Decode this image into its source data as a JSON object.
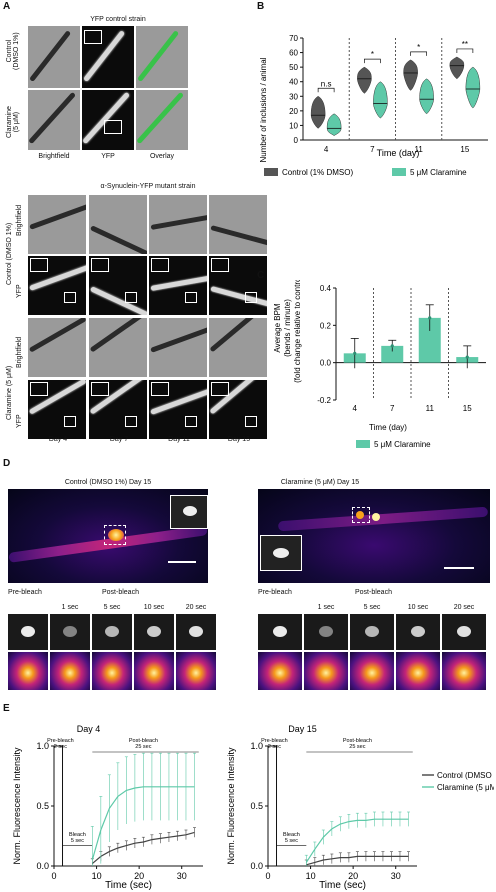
{
  "panelA": {
    "letter": "A",
    "top_title": "YFP control strain",
    "row_labels": [
      "Control\n(DMSO 1%)",
      "Claramine\n(5 μM)"
    ],
    "col_labels": [
      "Brightfield",
      "YFP",
      "Overlay"
    ],
    "mutant_title": "α-Synuclein-YFP mutant strain",
    "mutant_group_labels": [
      "Control (DMSO 1%)",
      "Claramine (5 μM)"
    ],
    "mutant_row_labels": [
      "Brightfield",
      "YFP",
      "Brightfield",
      "YFP"
    ],
    "day_labels": [
      "Day 4",
      "Day 7",
      "Day 11",
      "Day 15"
    ]
  },
  "panelB": {
    "letter": "B",
    "chart_data": {
      "type": "violin",
      "categories": [
        "4",
        "7",
        "11",
        "15"
      ],
      "xlabel": "Time (day)",
      "ylabel": "Number of inclusions / animal",
      "ylim": [
        0,
        70
      ],
      "yticks": [
        0,
        10,
        20,
        30,
        40,
        50,
        60,
        70
      ],
      "significance": [
        "n.s",
        "*",
        "*",
        "**"
      ],
      "series": [
        {
          "name": "Control (1% DMSO)",
          "color": "#555555",
          "medians": [
            17,
            42,
            46,
            51
          ],
          "ranges": [
            [
              8,
              30
            ],
            [
              32,
              50
            ],
            [
              34,
              55
            ],
            [
              42,
              57
            ]
          ]
        },
        {
          "name": "5 μM Claramine",
          "color": "#5ec9a8",
          "medians": [
            8,
            25,
            28,
            35
          ],
          "ranges": [
            [
              3,
              18
            ],
            [
              15,
              40
            ],
            [
              18,
              42
            ],
            [
              22,
              50
            ]
          ]
        }
      ]
    }
  },
  "panelC": {
    "letter": "C",
    "chart_data": {
      "type": "bar",
      "categories": [
        "4",
        "7",
        "11",
        "15"
      ],
      "values": [
        0.05,
        0.09,
        0.24,
        0.03
      ],
      "errors": [
        0.08,
        0.03,
        0.07,
        0.06
      ],
      "xlabel": "Time (day)",
      "ylabel": "Average BPM\n(bends / minute)\n(fold change relative to control)",
      "ylim": [
        -0.2,
        0.4
      ],
      "yticks": [
        -0.2,
        0.0,
        0.2,
        0.4
      ],
      "legend": "5 μM Claramine",
      "color": "#5ec9a8"
    }
  },
  "panelD": {
    "letter": "D",
    "left_title": "Control (DMSO 1%) Day 15",
    "right_title": "Claramine (5 μM) Day 15",
    "pre_bleach": "Pre-bleach",
    "post_bleach": "Post-bleach",
    "times": [
      "1 sec",
      "5 sec",
      "10 sec",
      "20 sec"
    ]
  },
  "panelE": {
    "letter": "E",
    "chart_data": [
      {
        "type": "line",
        "title": "Day 4",
        "xlabel": "Time (sec)",
        "ylabel": "Norm. Fluorescence Intensity",
        "xlim": [
          0,
          35
        ],
        "ylim": [
          0,
          1.0
        ],
        "xticks": [
          0,
          10,
          20,
          30
        ],
        "yticks": [
          0,
          0.5,
          1.0
        ],
        "annotations": {
          "pre_bleach": "Pre-bleach\n2 sec",
          "bleach": "Bleach\n5 sec",
          "post_bleach": "Post-bleach\n25 sec"
        },
        "series": [
          {
            "name": "Control (DMSO 1%)",
            "color": "#444444",
            "x": [
              9,
              11,
              13,
              15,
              17,
              19,
              21,
              23,
              25,
              27,
              29,
              31,
              33
            ],
            "y": [
              0.02,
              0.08,
              0.12,
              0.15,
              0.17,
              0.19,
              0.2,
              0.22,
              0.23,
              0.24,
              0.25,
              0.26,
              0.28
            ]
          },
          {
            "name": "Claramine (5 μM)",
            "color": "#5ec9a8",
            "x": [
              9,
              11,
              13,
              15,
              17,
              19,
              21,
              23,
              25,
              27,
              29,
              31,
              33
            ],
            "y": [
              0.05,
              0.3,
              0.48,
              0.58,
              0.63,
              0.65,
              0.66,
              0.66,
              0.66,
              0.66,
              0.66,
              0.66,
              0.66
            ]
          }
        ]
      },
      {
        "type": "line",
        "title": "Day 15",
        "xlabel": "Time (sec)",
        "ylabel": "Norm. Fluorescence Intensity",
        "xlim": [
          0,
          35
        ],
        "ylim": [
          0,
          1.0
        ],
        "xticks": [
          0,
          10,
          20,
          30
        ],
        "yticks": [
          0,
          0.5,
          1.0
        ],
        "annotations": {
          "pre_bleach": "Pre-bleach\n2 sec",
          "bleach": "Bleach\n5 sec",
          "post_bleach": "Post-bleach\n25 sec"
        },
        "series": [
          {
            "name": "Control (DMSO 1%)",
            "color": "#444444",
            "x": [
              9,
              11,
              13,
              15,
              17,
              19,
              21,
              23,
              25,
              27,
              29,
              31,
              33
            ],
            "y": [
              0.01,
              0.03,
              0.05,
              0.06,
              0.07,
              0.07,
              0.08,
              0.08,
              0.08,
              0.08,
              0.08,
              0.08,
              0.08
            ]
          },
          {
            "name": "Claramine (5 μM)",
            "color": "#5ec9a8",
            "x": [
              9,
              11,
              13,
              15,
              17,
              19,
              21,
              23,
              25,
              27,
              29,
              31,
              33
            ],
            "y": [
              0.03,
              0.14,
              0.24,
              0.31,
              0.35,
              0.37,
              0.38,
              0.38,
              0.39,
              0.39,
              0.39,
              0.39,
              0.39
            ]
          }
        ],
        "legend": [
          "Control (DMSO 1%)",
          "Claramine (5 μM)"
        ]
      }
    ]
  }
}
